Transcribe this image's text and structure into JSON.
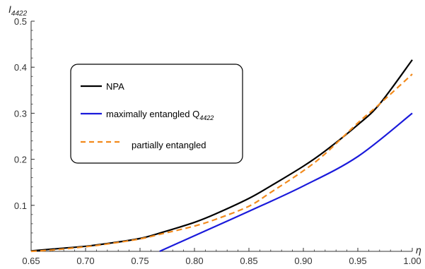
{
  "chart_data": {
    "type": "line",
    "title": "",
    "xlabel": "η",
    "ylabel": {
      "main": "I",
      "sub": "4422"
    },
    "xlim": [
      0.65,
      1.0
    ],
    "ylim": [
      0,
      0.5
    ],
    "x_ticks": [
      0.65,
      0.7,
      0.75,
      0.8,
      0.85,
      0.9,
      0.95,
      1.0
    ],
    "x_tick_labels": [
      "0.65",
      "0.70",
      "0.75",
      "0.80",
      "0.85",
      "0.90",
      "0.95",
      "1.00"
    ],
    "y_ticks": [
      0.1,
      0.2,
      0.3,
      0.4,
      0.5
    ],
    "y_tick_labels": [
      "0.1",
      "0.2",
      "0.3",
      "0.4",
      "0.5"
    ],
    "grid": false,
    "legend_position": "upper-left",
    "series": [
      {
        "name": "NPA",
        "color": "#000000",
        "dash": "solid",
        "x": [
          0.65,
          0.67,
          0.7,
          0.72,
          0.75,
          0.77,
          0.8,
          0.82,
          0.85,
          0.87,
          0.9,
          0.92,
          0.95,
          0.97,
          1.0
        ],
        "y": [
          0.001,
          0.005,
          0.011,
          0.017,
          0.028,
          0.041,
          0.063,
          0.082,
          0.115,
          0.142,
          0.185,
          0.218,
          0.275,
          0.32,
          0.416
        ]
      },
      {
        "name_main": "maximally entangled Q",
        "name_sub": "4422",
        "color": "#1a1adb",
        "dash": "solid",
        "x": [
          0.768,
          0.8,
          0.85,
          0.9,
          0.95,
          1.0
        ],
        "y": [
          0.0,
          0.034,
          0.087,
          0.142,
          0.206,
          0.3
        ]
      },
      {
        "name": "partially entangled",
        "color": "#f28a1c",
        "dash": "dashed",
        "x": [
          0.65,
          0.67,
          0.7,
          0.72,
          0.75,
          0.77,
          0.8,
          0.82,
          0.85,
          0.87,
          0.9,
          0.92,
          0.95,
          0.97,
          1.0
        ],
        "y": [
          0.0,
          0.003,
          0.01,
          0.016,
          0.027,
          0.038,
          0.055,
          0.07,
          0.098,
          0.128,
          0.175,
          0.212,
          0.279,
          0.32,
          0.385
        ]
      }
    ]
  }
}
